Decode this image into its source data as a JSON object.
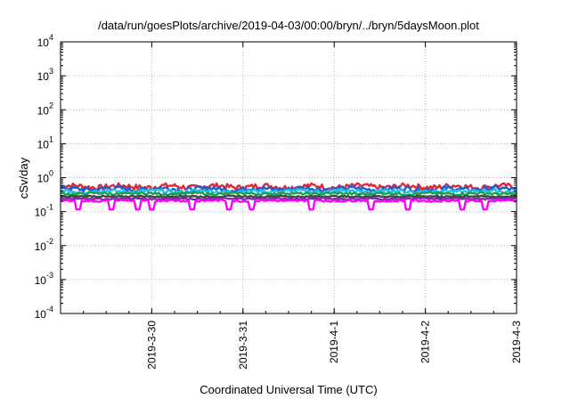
{
  "chart_data": {
    "type": "line",
    "title": "/data/run/goesPlots/archive/2019-04-03/00:00/bryn/../bryn/5daysMoon.plot",
    "xlabel": "Coordinated Universal Time (UTC)",
    "ylabel": "cSv/day",
    "yscale": "log",
    "ylim": [
      0.0001,
      10000
    ],
    "y_ticks": [
      {
        "value": 0.0001,
        "base": "10",
        "exp": "-4"
      },
      {
        "value": 0.001,
        "base": "10",
        "exp": "-3"
      },
      {
        "value": 0.01,
        "base": "10",
        "exp": "-2"
      },
      {
        "value": 0.1,
        "base": "10",
        "exp": "-1"
      },
      {
        "value": 1,
        "base": "10",
        "exp": "0"
      },
      {
        "value": 10,
        "base": "10",
        "exp": "1"
      },
      {
        "value": 100,
        "base": "10",
        "exp": "2"
      },
      {
        "value": 1000,
        "base": "10",
        "exp": "3"
      },
      {
        "value": 10000,
        "base": "10",
        "exp": "4"
      }
    ],
    "xlim": [
      "2019-03-29T00:00",
      "2019-04-03T00:00"
    ],
    "x_ticks": [
      "2019-3-30",
      "2019-3-31",
      "2019-4-1",
      "2019-4-2",
      "2019-4-3"
    ],
    "grid": true,
    "series": [
      {
        "color": "#e8252b",
        "level": 0.55,
        "amplitude": 0.18,
        "dips": []
      },
      {
        "color": "#1e5fd8",
        "level": 0.47,
        "amplitude": 0.16,
        "dips": [
          0.27,
          0.83
        ]
      },
      {
        "color": "#20c0e8",
        "level": 0.4,
        "amplitude": 0.12,
        "dips": []
      },
      {
        "color": "#1aa04a",
        "level": 0.34,
        "amplitude": 0.08,
        "dips": []
      },
      {
        "color": "#444444",
        "level": 0.28,
        "amplitude": 0.05,
        "dips": []
      },
      {
        "color": "#7a2ea0",
        "level": 0.24,
        "amplitude": 0.05,
        "dips": []
      },
      {
        "color": "#ff00ff",
        "level": 0.21,
        "amplitude": 0.06,
        "dips": [
          0.04,
          0.11,
          0.17,
          0.2,
          0.29,
          0.37,
          0.42,
          0.55,
          0.68,
          0.76,
          0.88,
          0.93
        ]
      }
    ]
  }
}
